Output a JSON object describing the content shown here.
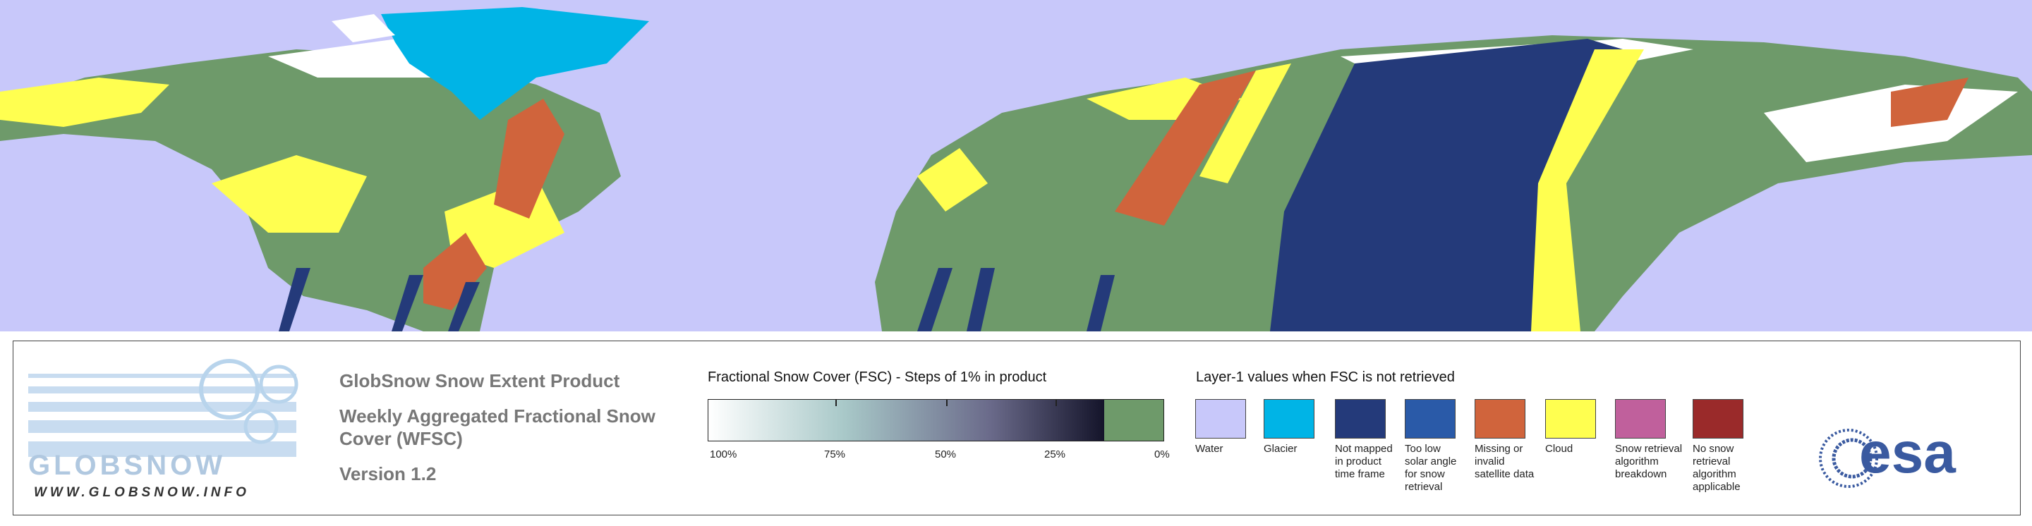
{
  "logo": {
    "name": "GLOBSNOW",
    "url": "WWW.GLOBSNOW.INFO"
  },
  "product": {
    "title": "GlobSnow Snow Extent Product",
    "subtitle": "Weekly Aggregated Fractional Snow Cover (WFSC)",
    "version": "Version 1.2"
  },
  "fsc_legend": {
    "title": "Fractional Snow Cover (FSC) - Steps of 1% in product",
    "ticks": [
      "100%",
      "75%",
      "50%",
      "25%",
      "0%"
    ]
  },
  "layer1_legend": {
    "title": "Layer-1 values when FSC is not retrieved",
    "items": [
      {
        "label": "Water",
        "color": "#c8c8fa"
      },
      {
        "label": "Glacier",
        "color": "#00b4e6"
      },
      {
        "label": "Not mapped in product time frame",
        "color": "#243a7a"
      },
      {
        "label": "Too low solar angle for snow retrieval",
        "color": "#2a5aa8"
      },
      {
        "label": "Missing or invalid satellite data",
        "color": "#d0643c"
      },
      {
        "label": "Cloud",
        "color": "#ffff50"
      },
      {
        "label": "Snow retrieval algorithm breakdown",
        "color": "#c0609c"
      },
      {
        "label": "No snow retrieval algorithm applicable",
        "color": "#9a2a2a"
      }
    ]
  },
  "agency": "esa"
}
